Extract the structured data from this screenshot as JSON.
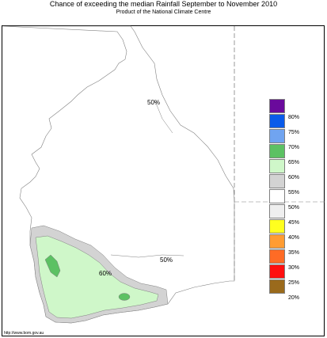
{
  "header": {
    "title": "Chance of exceeding the median Rainfall September to November 2010",
    "subtitle": "Product of the National Climate Centre"
  },
  "map": {
    "labels": [
      {
        "text": "50%"
      },
      {
        "text": "50%"
      },
      {
        "text": "60%"
      }
    ]
  },
  "legend": {
    "items": [
      {
        "label": "80%",
        "color": "#6a0a9c"
      },
      {
        "label": "75%",
        "color": "#0a5bea"
      },
      {
        "label": "70%",
        "color": "#70a4f0"
      },
      {
        "label": "65%",
        "color": "#5cc163"
      },
      {
        "label": "60%",
        "color": "#cff7c9"
      },
      {
        "label": "55%",
        "color": "#d3d3d3"
      },
      {
        "label": "50%",
        "color": "#ffffff"
      },
      {
        "label": "45%",
        "color": "#efefef"
      },
      {
        "label": "40%",
        "color": "#ffff1f"
      },
      {
        "label": "35%",
        "color": "#ff9c33"
      },
      {
        "label": "30%",
        "color": "#ff6b25"
      },
      {
        "label": "25%",
        "color": "#ff0f0f"
      },
      {
        "label": "20%",
        "color": "#9a6a1c"
      }
    ]
  },
  "footer": {
    "url": "http://www.bom.gov.au"
  }
}
